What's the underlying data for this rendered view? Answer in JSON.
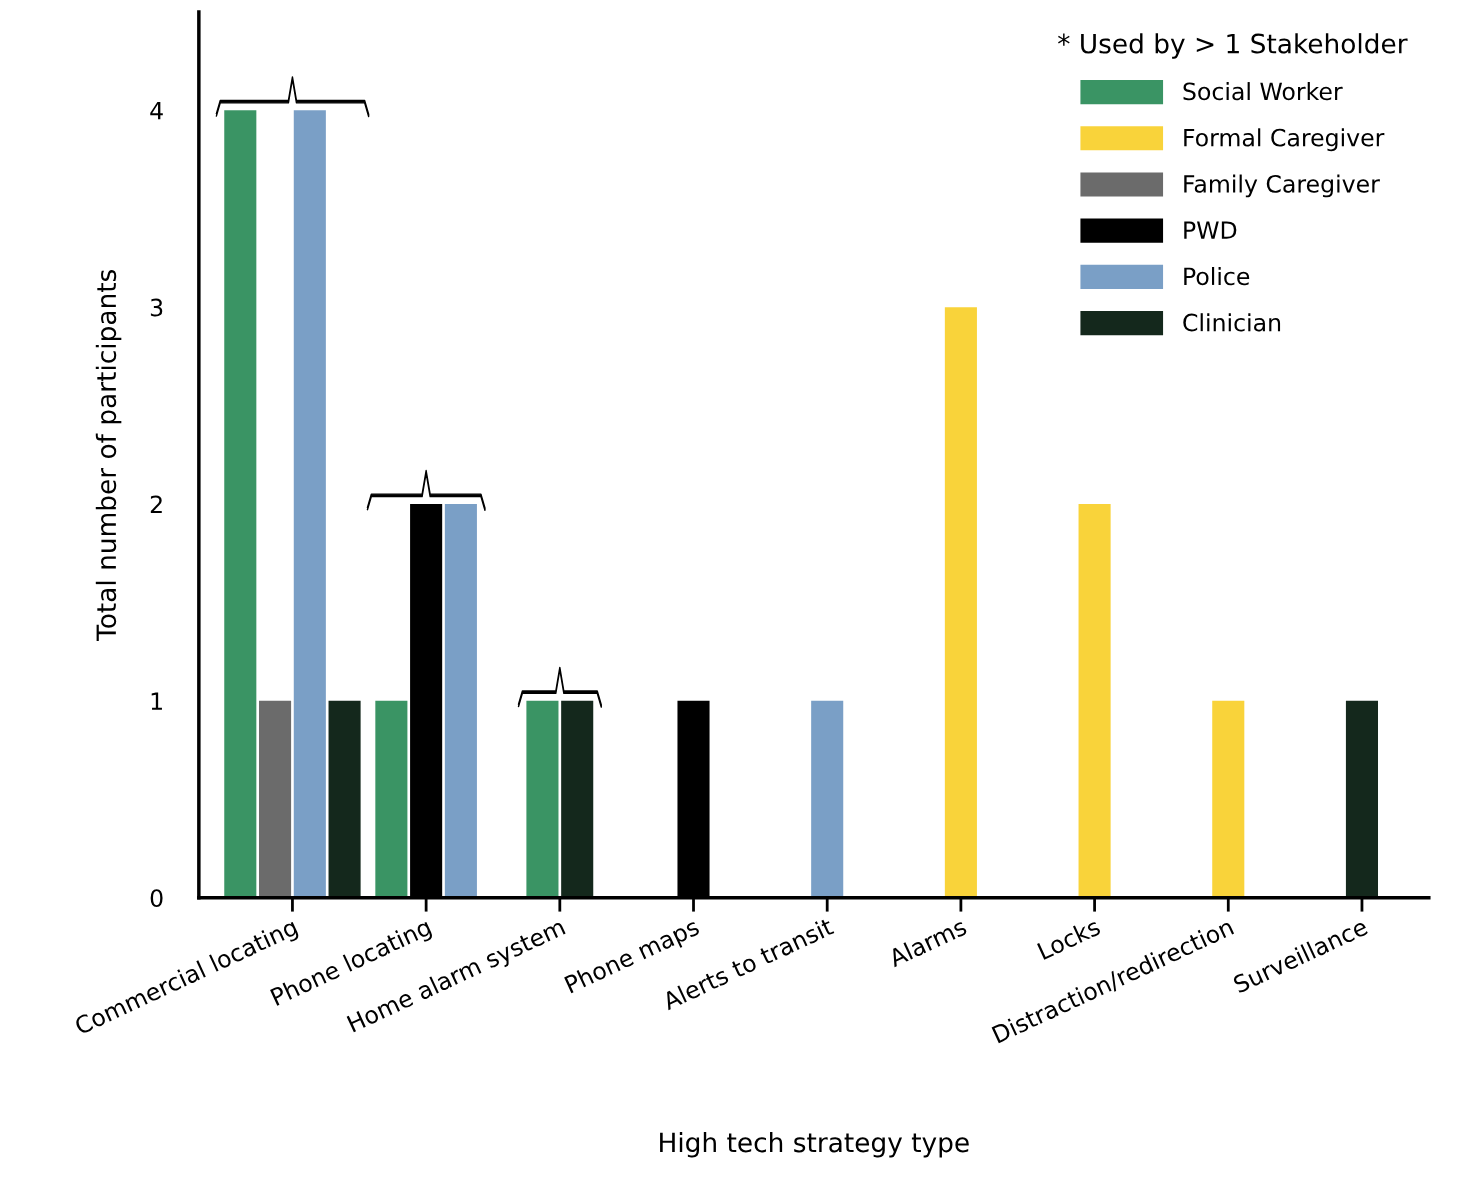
{
  "chart_data": {
    "type": "bar",
    "xlabel": "High tech strategy type",
    "ylabel": "Total number of participants",
    "legend_title": "* Used by > 1 Stakeholder",
    "legend": "top right",
    "grid": false,
    "categories": [
      "Commercial locating",
      "Phone locating",
      "Home alarm system",
      "Phone maps",
      "Alerts to transit",
      "Alarms",
      "Locks",
      "Distraction/redirection",
      "Surveillance"
    ],
    "ylim": [
      0,
      4.5
    ],
    "yticks": [
      0,
      1,
      2,
      3,
      4
    ],
    "series": [
      {
        "name": "Social Worker",
        "color": "#3a9464",
        "values": [
          4,
          1,
          1,
          null,
          null,
          null,
          null,
          null,
          null
        ]
      },
      {
        "name": "Formal Caregiver",
        "color": "#f9d33a",
        "values": [
          null,
          null,
          null,
          null,
          null,
          3,
          2,
          1,
          null
        ]
      },
      {
        "name": "Family Caregiver",
        "color": "#6b6b6b",
        "values": [
          1,
          null,
          null,
          null,
          null,
          null,
          null,
          null,
          null
        ]
      },
      {
        "name": "PWD",
        "color": "#000000",
        "values": [
          null,
          2,
          null,
          1,
          null,
          null,
          null,
          null,
          null
        ]
      },
      {
        "name": "Police",
        "color": "#7a9fc6",
        "values": [
          4,
          2,
          null,
          null,
          1,
          null,
          null,
          null,
          null
        ]
      },
      {
        "name": "Clinician",
        "color": "#14281c",
        "values": [
          1,
          null,
          1,
          null,
          null,
          null,
          null,
          null,
          1
        ]
      }
    ]
  }
}
